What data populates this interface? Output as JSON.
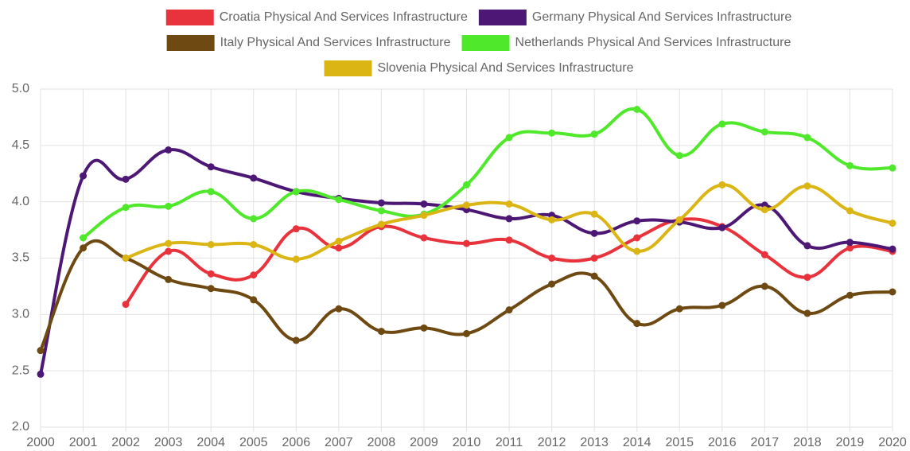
{
  "chart_data": {
    "type": "line",
    "categories": [
      "2000",
      "2001",
      "2002",
      "2003",
      "2004",
      "2005",
      "2006",
      "2007",
      "2008",
      "2009",
      "2010",
      "2011",
      "2012",
      "2013",
      "2014",
      "2015",
      "2016",
      "2017",
      "2018",
      "2019",
      "2020"
    ],
    "series": [
      {
        "name": "Croatia Physical And Services Infrastructure",
        "color": "#e8323c",
        "values": [
          null,
          null,
          3.09,
          3.56,
          3.36,
          3.35,
          3.76,
          3.59,
          3.78,
          3.68,
          3.63,
          3.66,
          3.5,
          3.5,
          3.68,
          3.84,
          3.78,
          3.53,
          3.33,
          3.59,
          3.56
        ]
      },
      {
        "name": "Germany Physical And Services Infrastructure",
        "color": "#4d1875",
        "values": [
          2.47,
          4.23,
          4.2,
          4.46,
          4.31,
          4.21,
          4.09,
          4.03,
          3.99,
          3.98,
          3.93,
          3.85,
          3.88,
          3.72,
          3.83,
          3.82,
          3.77,
          3.97,
          3.61,
          3.64,
          3.58
        ]
      },
      {
        "name": "Italy Physical And Services Infrastructure",
        "color": "#6e4a12",
        "values": [
          2.68,
          3.59,
          3.5,
          3.31,
          3.23,
          3.13,
          2.77,
          3.05,
          2.85,
          2.88,
          2.83,
          3.04,
          3.27,
          3.34,
          2.92,
          3.05,
          3.08,
          3.25,
          3.01,
          3.17,
          3.2
        ]
      },
      {
        "name": "Netherlands Physical And Services Infrastructure",
        "color": "#4fe82a",
        "values": [
          null,
          3.68,
          3.95,
          3.96,
          4.09,
          3.85,
          4.09,
          4.02,
          3.92,
          3.89,
          4.15,
          4.57,
          4.61,
          4.6,
          4.82,
          4.41,
          4.69,
          4.62,
          4.57,
          4.32,
          4.3
        ]
      },
      {
        "name": "Slovenia Physical And Services Infrastructure",
        "color": "#dbb514",
        "values": [
          null,
          null,
          3.5,
          3.63,
          3.62,
          3.62,
          3.49,
          3.65,
          3.8,
          3.88,
          3.97,
          3.98,
          3.84,
          3.89,
          3.56,
          3.84,
          4.15,
          3.93,
          4.14,
          3.92,
          3.81
        ]
      }
    ],
    "ylim": [
      2,
      5
    ],
    "yticks": [
      {
        "value": 2,
        "label": "2.0"
      },
      {
        "value": 2.5,
        "label": "2.5"
      },
      {
        "value": 3,
        "label": "3.0"
      },
      {
        "value": 3.5,
        "label": "3.5"
      },
      {
        "value": 4,
        "label": "4.0"
      },
      {
        "value": 4.5,
        "label": "4.5"
      },
      {
        "value": 5,
        "label": "5.0"
      }
    ],
    "grid": true
  }
}
